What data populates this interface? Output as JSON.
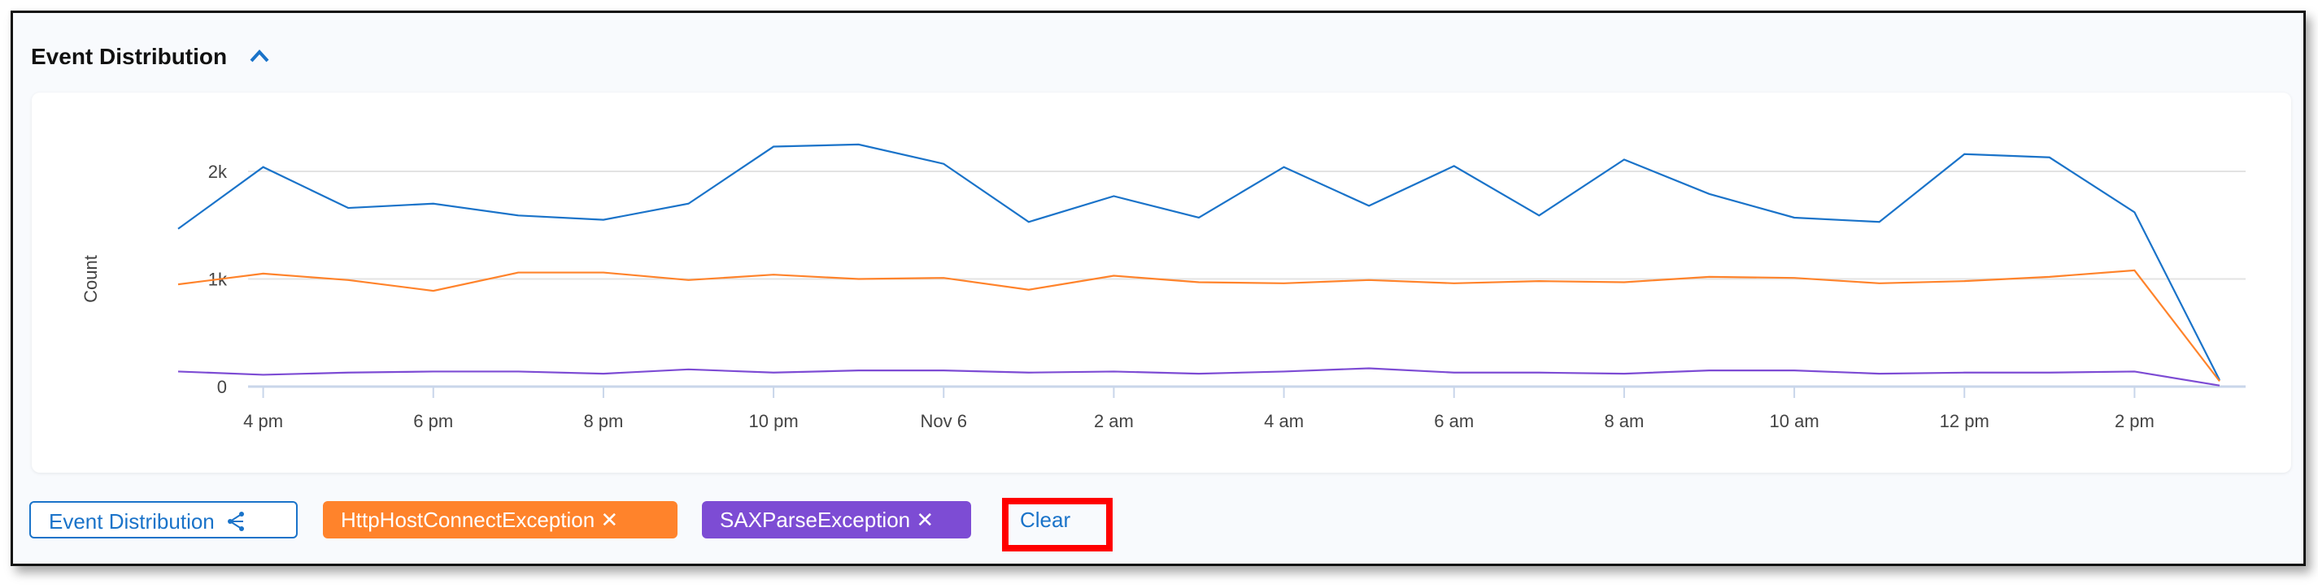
{
  "panel": {
    "title": "Event Distribution",
    "collapse_icon": "chevron-up-icon"
  },
  "chart_data": {
    "type": "line",
    "ylabel": "Count",
    "xlabel": "",
    "ylim": [
      0,
      2400
    ],
    "yticks": [
      {
        "v": 0,
        "label": "0"
      },
      {
        "v": 1000,
        "label": "1k"
      },
      {
        "v": 2000,
        "label": "2k"
      }
    ],
    "x": [
      "3 pm",
      "4 pm",
      "5 pm",
      "6 pm",
      "7 pm",
      "8 pm",
      "9 pm",
      "10 pm",
      "11 pm",
      "Nov 6",
      "1 am",
      "2 am",
      "3 am",
      "4 am",
      "5 am",
      "6 am",
      "7 am",
      "8 am",
      "9 am",
      "10 am",
      "11 am",
      "12 pm",
      "1 pm",
      "2 pm",
      "3 pm"
    ],
    "xtick_labels": [
      "4 pm",
      "6 pm",
      "8 pm",
      "10 pm",
      "Nov 6",
      "2 am",
      "4 am",
      "6 am",
      "8 am",
      "10 am",
      "12 pm",
      "2 pm"
    ],
    "grid": true,
    "series": [
      {
        "color": "#1a73c9",
        "values": [
          1466,
          2040,
          1660,
          1700,
          1590,
          1550,
          1700,
          2230,
          2250,
          2070,
          1530,
          1770,
          1570,
          2040,
          1680,
          2050,
          1590,
          2110,
          1790,
          1570,
          1530,
          2160,
          2130,
          1620,
          60
        ]
      },
      {
        "color": "#ff832b",
        "values": [
          950,
          1050,
          990,
          890,
          1060,
          1060,
          990,
          1040,
          1000,
          1010,
          900,
          1030,
          970,
          960,
          990,
          960,
          980,
          970,
          1020,
          1010,
          960,
          980,
          1020,
          1080,
          50
        ]
      },
      {
        "color": "#7d4cd4",
        "values": [
          140,
          110,
          130,
          140,
          140,
          120,
          160,
          130,
          150,
          150,
          130,
          140,
          120,
          140,
          170,
          130,
          130,
          120,
          150,
          150,
          120,
          130,
          130,
          140,
          10
        ]
      }
    ]
  },
  "filters": {
    "event_distribution": {
      "label": "Event Distribution",
      "icon": "share-icon"
    },
    "chips": [
      {
        "label": "HttpHostConnectException ✕",
        "color": "#ff832b"
      },
      {
        "label": "SAXParseException ✕",
        "color": "#7d4cd4"
      }
    ],
    "clear_label": "Clear"
  }
}
